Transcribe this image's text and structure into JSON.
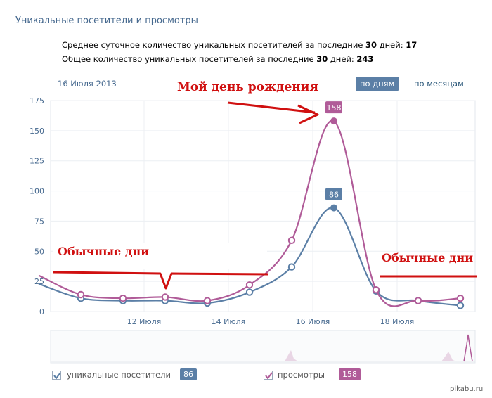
{
  "header": {
    "title": "Уникальные посетители и просмотры",
    "stat1_text": "Среднее суточное количество уникальных посетителей за последние ",
    "stat1_days": "30",
    "stat1_mid": " дней: ",
    "stat1_value": "17",
    "stat2_text": "Общее количество уникальных посетителей за последние ",
    "stat2_days": "30",
    "stat2_mid": " дней: ",
    "stat2_value": "243"
  },
  "controls": {
    "date_label": "16 Июля 2013",
    "by_days": "по дням",
    "by_months": "по месяцам"
  },
  "annotations": {
    "birthday": "Мой день рождения",
    "normal_left": "Обычные дни",
    "normal_right": "Обычные дни"
  },
  "legend": {
    "unique_label": "уникальные посетители",
    "unique_count": "86",
    "views_label": "просмотры",
    "views_count": "158"
  },
  "watermark": "pikabu.ru",
  "colors": {
    "unique": "#5b7fa6",
    "views": "#b05b98",
    "annotation": "#d01010"
  },
  "chart_data": {
    "type": "line",
    "title": "",
    "xlabel": "",
    "ylabel": "",
    "ylim": [
      0,
      175
    ],
    "yticks": [
      0,
      25,
      50,
      75,
      100,
      125,
      150,
      175
    ],
    "xtick_labels": [
      "12 Июля",
      "14 Июля",
      "16 Июля",
      "18 Июля"
    ],
    "xtick_days": [
      12,
      14,
      16,
      18
    ],
    "grid": true,
    "x_days": [
      9.5,
      10.5,
      11.5,
      12.5,
      13.5,
      14.5,
      15.5,
      16.5,
      17.5,
      18.5,
      19.5
    ],
    "series": [
      {
        "name": "уникальные посетители",
        "values": [
          23,
          11,
          9,
          9,
          7,
          16,
          37,
          86,
          17,
          9,
          5
        ]
      },
      {
        "name": "просмотры",
        "values": [
          30,
          14,
          11,
          12,
          9,
          22,
          59,
          158,
          18,
          9,
          11
        ]
      }
    ],
    "peak_labels": [
      {
        "series": 1,
        "day": 16.5,
        "text": "158"
      },
      {
        "series": 0,
        "day": 16.5,
        "text": "86"
      }
    ]
  }
}
